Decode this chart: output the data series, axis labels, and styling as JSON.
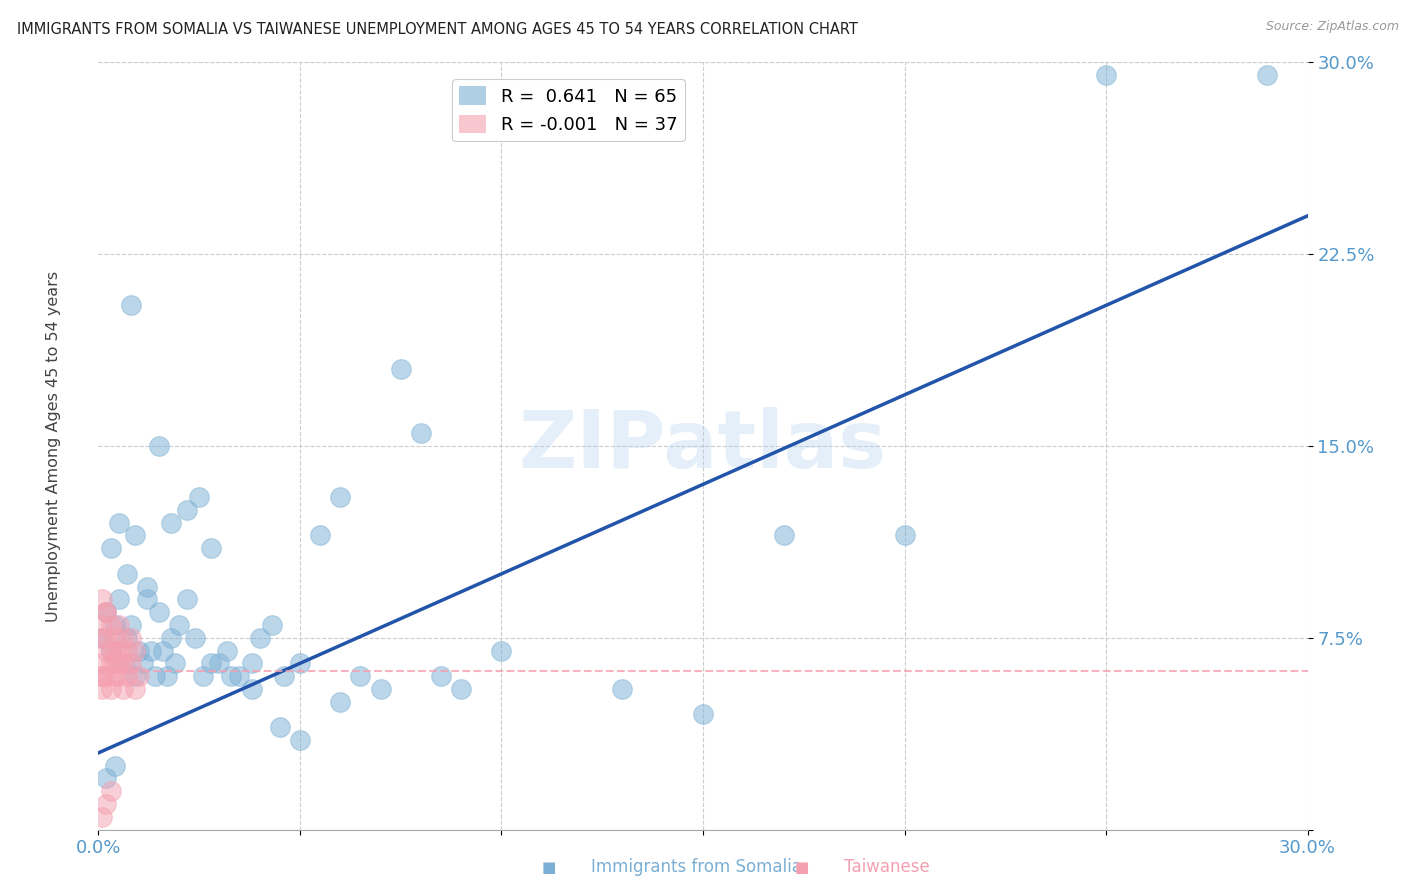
{
  "title": "IMMIGRANTS FROM SOMALIA VS TAIWANESE UNEMPLOYMENT AMONG AGES 45 TO 54 YEARS CORRELATION CHART",
  "source": "Source: ZipAtlas.com",
  "ylabel": "Unemployment Among Ages 45 to 54 years",
  "xlabel_blue": "Immigrants from Somalia",
  "xlabel_pink": "Taiwanese",
  "xlim": [
    0.0,
    0.3
  ],
  "ylim": [
    0.0,
    0.3
  ],
  "yticks": [
    0.0,
    0.075,
    0.15,
    0.225,
    0.3
  ],
  "ytick_labels": [
    "",
    "7.5%",
    "15.0%",
    "22.5%",
    "30.0%"
  ],
  "xticks": [
    0.0,
    0.05,
    0.1,
    0.15,
    0.2,
    0.25,
    0.3
  ],
  "xtick_labels": [
    "0.0%",
    "",
    "",
    "",
    "",
    "",
    "30.0%"
  ],
  "legend_blue_R": "0.641",
  "legend_blue_N": "65",
  "legend_pink_R": "-0.001",
  "legend_pink_N": "37",
  "blue_color": "#7BAFD4",
  "pink_color": "#F4A0B0",
  "trend_blue_color": "#2255AA",
  "trend_pink_color": "#F4A0B0",
  "watermark": "ZIPatlas",
  "watermark_color": "#AACCEE",
  "blue_trend_x0": 0.0,
  "blue_trend_y0": 0.03,
  "blue_trend_x1": 0.3,
  "blue_trend_y1": 0.24,
  "pink_trend_x0": 0.0,
  "pink_trend_y0": 0.062,
  "pink_trend_x1": 0.3,
  "pink_trend_y1": 0.062,
  "blue_scatter_x": [
    0.001,
    0.002,
    0.003,
    0.004,
    0.005,
    0.006,
    0.007,
    0.008,
    0.009,
    0.01,
    0.011,
    0.012,
    0.013,
    0.014,
    0.015,
    0.016,
    0.017,
    0.018,
    0.019,
    0.02,
    0.022,
    0.024,
    0.026,
    0.028,
    0.03,
    0.032,
    0.035,
    0.038,
    0.04,
    0.043,
    0.046,
    0.05,
    0.055,
    0.06,
    0.065,
    0.07,
    0.075,
    0.08,
    0.085,
    0.09,
    0.003,
    0.005,
    0.007,
    0.009,
    0.012,
    0.015,
    0.018,
    0.022,
    0.025,
    0.028,
    0.033,
    0.038,
    0.045,
    0.05,
    0.06,
    0.1,
    0.13,
    0.15,
    0.2,
    0.25,
    0.002,
    0.004,
    0.008,
    0.29,
    0.17
  ],
  "blue_scatter_y": [
    0.075,
    0.085,
    0.07,
    0.08,
    0.09,
    0.065,
    0.075,
    0.08,
    0.06,
    0.07,
    0.065,
    0.09,
    0.07,
    0.06,
    0.085,
    0.07,
    0.06,
    0.075,
    0.065,
    0.08,
    0.09,
    0.075,
    0.06,
    0.065,
    0.065,
    0.07,
    0.06,
    0.065,
    0.075,
    0.08,
    0.06,
    0.065,
    0.115,
    0.13,
    0.06,
    0.055,
    0.18,
    0.155,
    0.06,
    0.055,
    0.11,
    0.12,
    0.1,
    0.115,
    0.095,
    0.15,
    0.12,
    0.125,
    0.13,
    0.11,
    0.06,
    0.055,
    0.04,
    0.035,
    0.05,
    0.07,
    0.055,
    0.045,
    0.115,
    0.295,
    0.02,
    0.025,
    0.205,
    0.295,
    0.115
  ],
  "pink_scatter_x": [
    0.001,
    0.001,
    0.001,
    0.001,
    0.002,
    0.002,
    0.002,
    0.002,
    0.003,
    0.003,
    0.003,
    0.003,
    0.004,
    0.004,
    0.004,
    0.004,
    0.005,
    0.005,
    0.005,
    0.005,
    0.006,
    0.006,
    0.006,
    0.007,
    0.007,
    0.008,
    0.008,
    0.009,
    0.009,
    0.01,
    0.001,
    0.002,
    0.003,
    0.001,
    0.002,
    0.001,
    0.001
  ],
  "pink_scatter_y": [
    0.075,
    0.065,
    0.08,
    0.06,
    0.085,
    0.07,
    0.06,
    0.075,
    0.065,
    0.07,
    0.055,
    0.08,
    0.06,
    0.07,
    0.065,
    0.075,
    0.065,
    0.06,
    0.08,
    0.07,
    0.055,
    0.065,
    0.075,
    0.06,
    0.07,
    0.065,
    0.075,
    0.055,
    0.07,
    0.06,
    0.005,
    0.01,
    0.015,
    0.09,
    0.085,
    0.055,
    0.06
  ]
}
